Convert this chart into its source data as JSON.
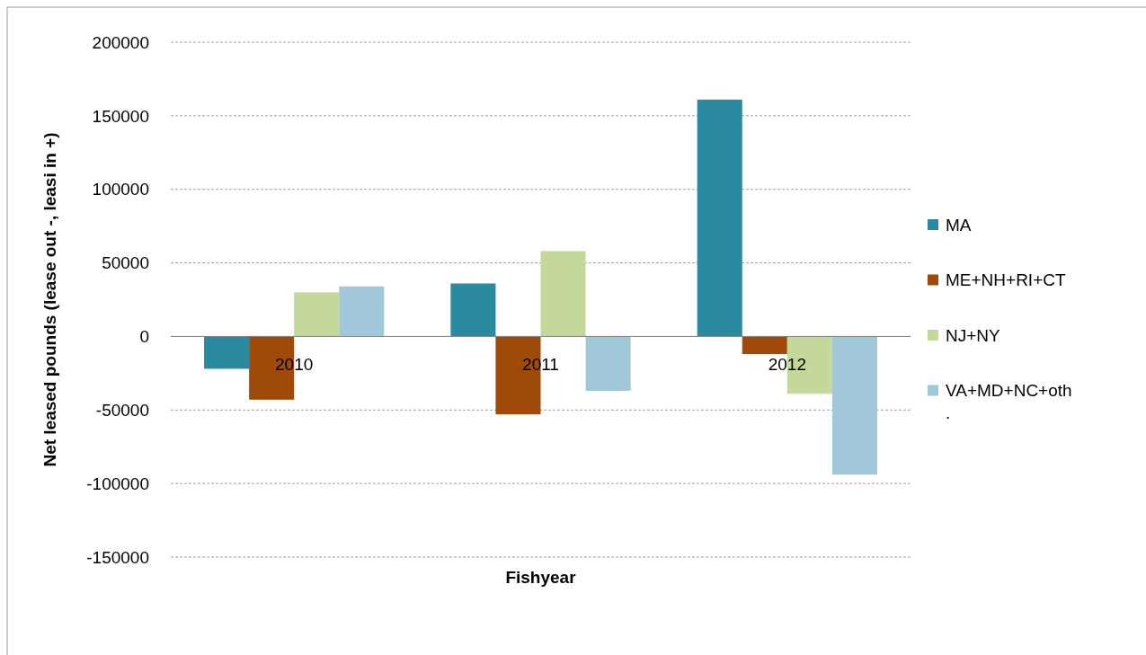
{
  "chart_data": {
    "type": "bar",
    "xlabel": "Fishyear",
    "ylabel": "Net leased pounds (lease out -, leasi in +)",
    "categories": [
      "2010",
      "2011",
      "2012"
    ],
    "series": [
      {
        "name": "MA",
        "color": "#2a8aa0",
        "values": [
          -22000,
          36000,
          161000
        ]
      },
      {
        "name": "ME+NH+RI+CT",
        "color": "#a04a0a",
        "values": [
          -43000,
          -53000,
          -12000
        ]
      },
      {
        "name": "NJ+NY",
        "color": "#c4d89a",
        "values": [
          30000,
          58000,
          -39000
        ]
      },
      {
        "name": "VA+MD+NC+oth.",
        "color": "#a0c8d8",
        "values": [
          34000,
          -37000,
          -94000
        ]
      }
    ],
    "ylim": [
      -150000,
      200000
    ],
    "yticks": [
      -150000,
      -100000,
      -50000,
      0,
      50000,
      100000,
      150000,
      200000
    ],
    "grid": "y",
    "legend": "right"
  }
}
